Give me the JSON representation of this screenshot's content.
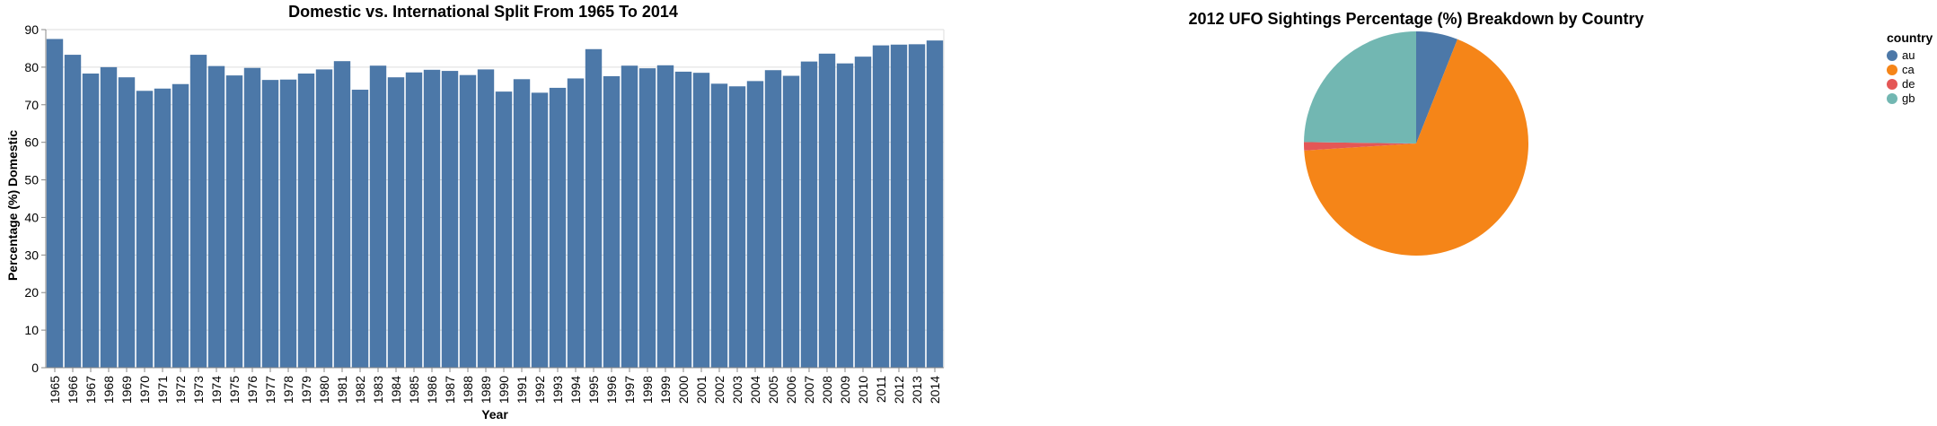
{
  "chart_data": [
    {
      "type": "bar",
      "title": "Domestic vs. International Split From 1965 To 2014",
      "xlabel": "Year",
      "ylabel": "Percentage (%) Domestic",
      "ylim": [
        0,
        90
      ],
      "yticks": [
        0,
        10,
        20,
        30,
        40,
        50,
        60,
        70,
        80,
        90
      ],
      "grid": true,
      "color": "#4c78a8",
      "categories": [
        "1965",
        "1966",
        "1967",
        "1968",
        "1969",
        "1970",
        "1971",
        "1972",
        "1973",
        "1974",
        "1975",
        "1976",
        "1977",
        "1978",
        "1979",
        "1980",
        "1981",
        "1982",
        "1983",
        "1984",
        "1985",
        "1986",
        "1987",
        "1988",
        "1989",
        "1990",
        "1991",
        "1992",
        "1993",
        "1994",
        "1995",
        "1996",
        "1997",
        "1998",
        "1999",
        "2000",
        "2001",
        "2002",
        "2003",
        "2004",
        "2005",
        "2006",
        "2007",
        "2008",
        "2009",
        "2010",
        "2011",
        "2012",
        "2013",
        "2014"
      ],
      "values": [
        87.5,
        83.3,
        78.3,
        80.0,
        77.3,
        73.7,
        74.3,
        75.5,
        83.3,
        80.3,
        77.8,
        79.8,
        76.6,
        76.7,
        78.3,
        79.4,
        81.6,
        74.0,
        80.4,
        77.3,
        78.6,
        79.3,
        79.0,
        77.9,
        79.4,
        73.5,
        76.8,
        73.2,
        74.5,
        77.0,
        84.8,
        77.6,
        80.4,
        79.7,
        80.5,
        78.8,
        78.5,
        75.6,
        74.9,
        76.3,
        79.2,
        77.7,
        81.5,
        83.6,
        81.0,
        82.8,
        85.8,
        86.0,
        86.1,
        87.1
      ]
    },
    {
      "type": "pie",
      "title": "2012 UFO Sightings Percentage (%) Breakdown by Country",
      "legend_title": "country",
      "legend_position": "top-right",
      "slices": [
        {
          "label": "au",
          "value": 6.0,
          "color": "#4c78a8"
        },
        {
          "label": "ca",
          "value": 68.0,
          "color": "#f58518"
        },
        {
          "label": "de",
          "value": 1.2,
          "color": "#e45756"
        },
        {
          "label": "gb",
          "value": 24.8,
          "color": "#72b7b2"
        }
      ]
    }
  ]
}
